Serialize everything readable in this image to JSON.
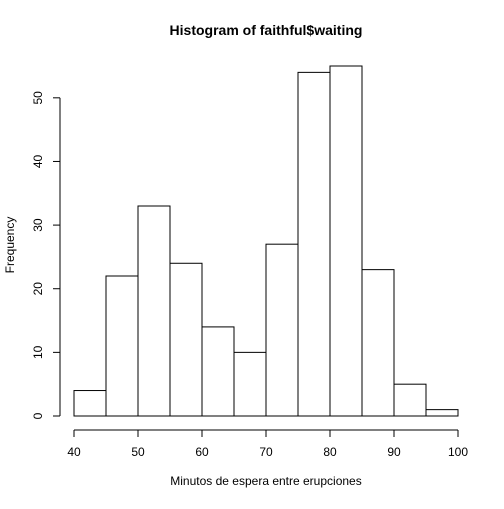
{
  "chart_data": {
    "type": "bar",
    "title": "Histogram of faithful$waiting",
    "xlabel": "Minutos de espera entre erupciones",
    "ylabel": "Frequency",
    "bins": [
      {
        "start": 40,
        "end": 45,
        "count": 4
      },
      {
        "start": 45,
        "end": 50,
        "count": 22
      },
      {
        "start": 50,
        "end": 55,
        "count": 33
      },
      {
        "start": 55,
        "end": 60,
        "count": 24
      },
      {
        "start": 60,
        "end": 65,
        "count": 14
      },
      {
        "start": 65,
        "end": 70,
        "count": 10
      },
      {
        "start": 70,
        "end": 75,
        "count": 27
      },
      {
        "start": 75,
        "end": 80,
        "count": 54
      },
      {
        "start": 80,
        "end": 85,
        "count": 55
      },
      {
        "start": 85,
        "end": 90,
        "count": 23
      },
      {
        "start": 90,
        "end": 95,
        "count": 5
      },
      {
        "start": 95,
        "end": 100,
        "count": 1
      }
    ],
    "x_ticks": [
      40,
      50,
      60,
      70,
      80,
      90,
      100
    ],
    "y_ticks": [
      0,
      10,
      20,
      30,
      40,
      50
    ],
    "xlim": [
      40,
      100
    ],
    "ylim": [
      0,
      55
    ],
    "grid": false,
    "legend": "none",
    "colors": {
      "bar_fill": "#ffffff",
      "bar_stroke": "#000000",
      "axis": "#000000"
    }
  }
}
